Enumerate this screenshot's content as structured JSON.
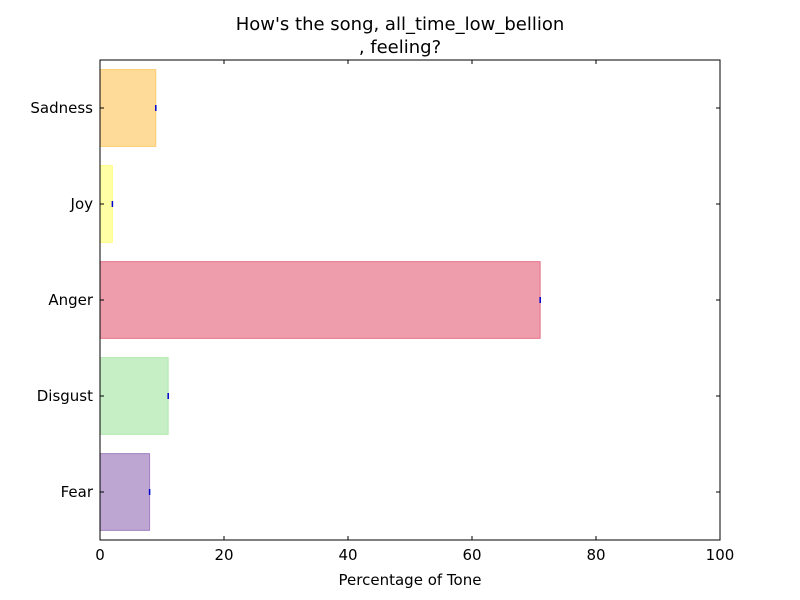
{
  "chart_data": {
    "type": "bar",
    "orientation": "horizontal",
    "title_lines": [
      "How's the song, all_time_low_bellion",
      ", feeling?"
    ],
    "xlabel": "Percentage of Tone",
    "ylabel": "",
    "xlim": [
      0,
      100
    ],
    "xticks": [
      0,
      20,
      40,
      60,
      80,
      100
    ],
    "xtick_labels": [
      "0",
      "20",
      "40",
      "60",
      "80",
      "100"
    ],
    "categories": [
      "Fear",
      "Disgust",
      "Anger",
      "Joy",
      "Sadness"
    ],
    "values": [
      8,
      11,
      71,
      2,
      9
    ],
    "colors": [
      "#7b4fa6",
      "#8ee08e",
      "#dc3c5a",
      "#ffff4d",
      "#ffb733"
    ],
    "grid": false,
    "legend": "none"
  }
}
